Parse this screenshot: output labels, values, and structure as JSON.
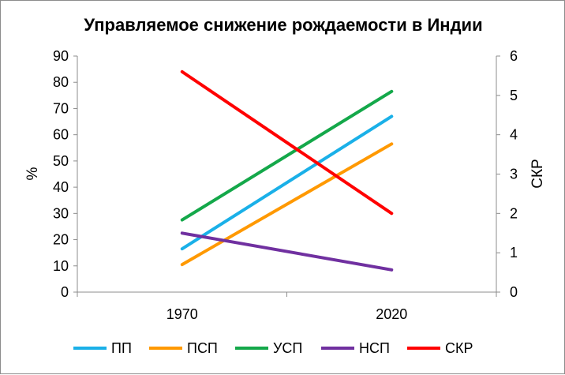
{
  "chart_data": {
    "type": "line",
    "title": "Управляемое снижение рождаемости в Индии",
    "categories": [
      "1970",
      "2020"
    ],
    "ylabel_left": "%",
    "ylabel_right": "СКР",
    "ylim_left": [
      0,
      90
    ],
    "ylim_right": [
      0,
      6
    ],
    "yticks_left": [
      "0",
      "10",
      "20",
      "30",
      "40",
      "50",
      "60",
      "70",
      "80",
      "90"
    ],
    "yticks_right": [
      "0",
      "1",
      "2",
      "3",
      "4",
      "5",
      "6"
    ],
    "grid": false,
    "legend_position": "bottom",
    "series": [
      {
        "name": "ПП",
        "axis": "left",
        "color": "#1ab0e8",
        "values": [
          16.5,
          67
        ]
      },
      {
        "name": "ПСП",
        "axis": "left",
        "color": "#ff9900",
        "values": [
          10.5,
          56.5
        ]
      },
      {
        "name": "УСП",
        "axis": "left",
        "color": "#14a84a",
        "values": [
          27.5,
          76.5
        ]
      },
      {
        "name": "НСП",
        "axis": "left",
        "color": "#7030a0",
        "values": [
          22.5,
          8.5
        ]
      },
      {
        "name": "СКР",
        "axis": "right",
        "color": "#ff0000",
        "values": [
          5.6,
          2.0
        ]
      }
    ]
  }
}
